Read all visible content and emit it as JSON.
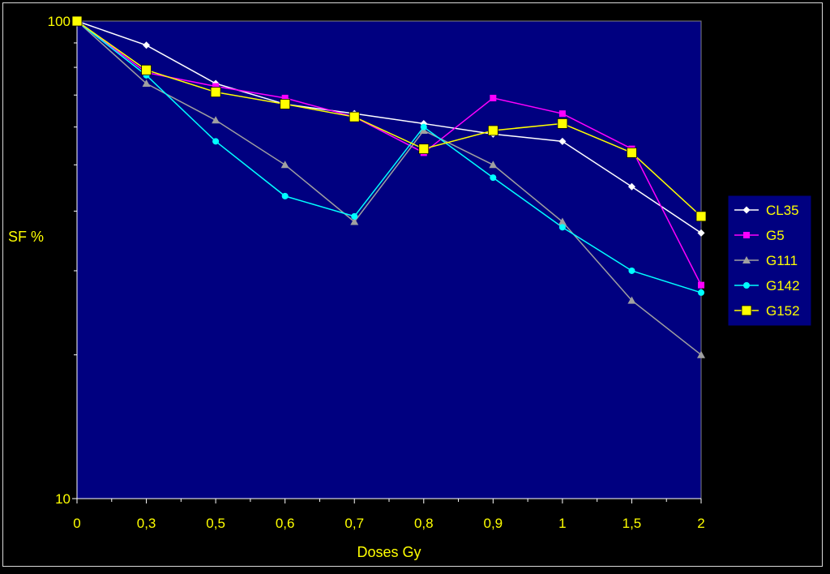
{
  "chart_data": {
    "type": "line",
    "title": "",
    "xlabel": "Doses Gy",
    "ylabel": "SF %",
    "y_scale": "log",
    "ylim": [
      10,
      100
    ],
    "y_tick_labels": [
      "100",
      "10"
    ],
    "categories": [
      "0",
      "0,3",
      "0,5",
      "0,6",
      "0,7",
      "0,8",
      "0,9",
      "1",
      "1,5",
      "2"
    ],
    "legend_position": "right",
    "grid": false,
    "plot_background": "#000080",
    "page_background": "#000000",
    "axis_text_color": "#ffff00",
    "series": [
      {
        "name": "CL35",
        "color": "#ffffff",
        "marker": "diamond",
        "values": [
          100,
          89,
          74,
          67,
          64,
          61,
          58,
          56,
          45,
          36
        ]
      },
      {
        "name": "G5",
        "color": "#ff00ff",
        "marker": "square",
        "values": [
          100,
          78,
          73,
          69,
          63,
          53,
          69,
          64,
          54,
          28
        ]
      },
      {
        "name": "G111",
        "color": "#a0a0a0",
        "marker": "triangle",
        "values": [
          100,
          74,
          62,
          50,
          38,
          59,
          50,
          38,
          26,
          20
        ]
      },
      {
        "name": "G142",
        "color": "#00ffff",
        "marker": "circle",
        "values": [
          100,
          77,
          56,
          43,
          39,
          60,
          47,
          37,
          30,
          27
        ]
      },
      {
        "name": "G152",
        "color": "#ffff00",
        "marker": "big-square",
        "values": [
          100,
          79,
          71,
          67,
          63,
          54,
          59,
          61,
          53,
          39
        ]
      }
    ]
  }
}
